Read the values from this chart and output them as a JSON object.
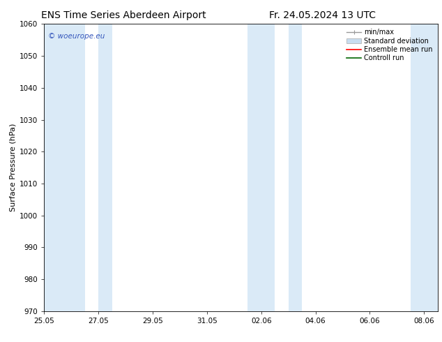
{
  "title_left": "ENS Time Series Aberdeen Airport",
  "title_right": "Fr. 24.05.2024 13 UTC",
  "ylabel": "Surface Pressure (hPa)",
  "ylim": [
    970,
    1060
  ],
  "yticks": [
    970,
    980,
    990,
    1000,
    1010,
    1020,
    1030,
    1040,
    1050,
    1060
  ],
  "xlim": [
    0,
    14.5
  ],
  "xtick_labels": [
    "25.05",
    "27.05",
    "29.05",
    "31.05",
    "02.06",
    "04.06",
    "06.06",
    "08.06"
  ],
  "xtick_positions": [
    0,
    2,
    4,
    6,
    8,
    10,
    12,
    14
  ],
  "shaded_bands": [
    {
      "x_start": 0.0,
      "x_end": 1.5
    },
    {
      "x_start": 2.0,
      "x_end": 2.5
    },
    {
      "x_start": 7.5,
      "x_end": 8.5
    },
    {
      "x_start": 9.0,
      "x_end": 9.5
    },
    {
      "x_start": 13.5,
      "x_end": 14.5
    }
  ],
  "shaded_color": "#daeaf7",
  "background_color": "#ffffff",
  "watermark_text": "© woeurope.eu",
  "watermark_color": "#3355bb",
  "legend_items": [
    {
      "label": "min/max",
      "color": "#aaaaaa",
      "style": "errorbar"
    },
    {
      "label": "Standard deviation",
      "color": "#c8ddf0",
      "style": "fill"
    },
    {
      "label": "Ensemble mean run",
      "color": "#ff0000",
      "style": "line"
    },
    {
      "label": "Controll run",
      "color": "#006600",
      "style": "line"
    }
  ],
  "title_fontsize": 10,
  "axis_fontsize": 8,
  "tick_fontsize": 7.5,
  "legend_fontsize": 7
}
